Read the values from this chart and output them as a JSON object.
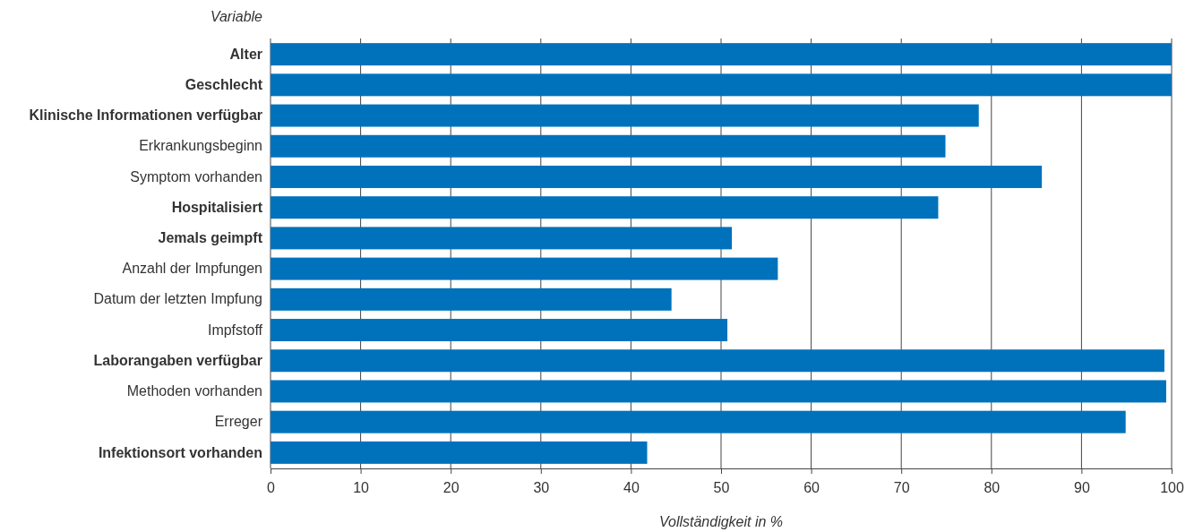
{
  "chart_data": {
    "type": "bar",
    "orientation": "horizontal",
    "xlabel": "Vollständigkeit in %",
    "ylabel": "Variable",
    "categories": [
      "Alter",
      "Geschlecht",
      "Klinische Informationen verfügbar",
      "Erkrankungsbeginn",
      "Symptom vorhanden",
      "Hospitalisiert",
      "Jemals geimpft",
      "Anzahl der Impfungen",
      "Datum der letzten Impfung",
      "Impfstoff",
      "Laborangaben verfügbar",
      "Methoden vorhanden",
      "Erreger",
      "Infektionsort vorhanden"
    ],
    "values": [
      100,
      100,
      78.6,
      74.9,
      85.6,
      74.1,
      51.2,
      56.3,
      44.5,
      50.7,
      99.2,
      99.4,
      94.9,
      41.8
    ],
    "color": "#0072bc",
    "xlim": [
      0,
      100
    ],
    "xticks": [
      0,
      10,
      20,
      30,
      40,
      50,
      60,
      70,
      80,
      90,
      100
    ],
    "grid": "x"
  }
}
